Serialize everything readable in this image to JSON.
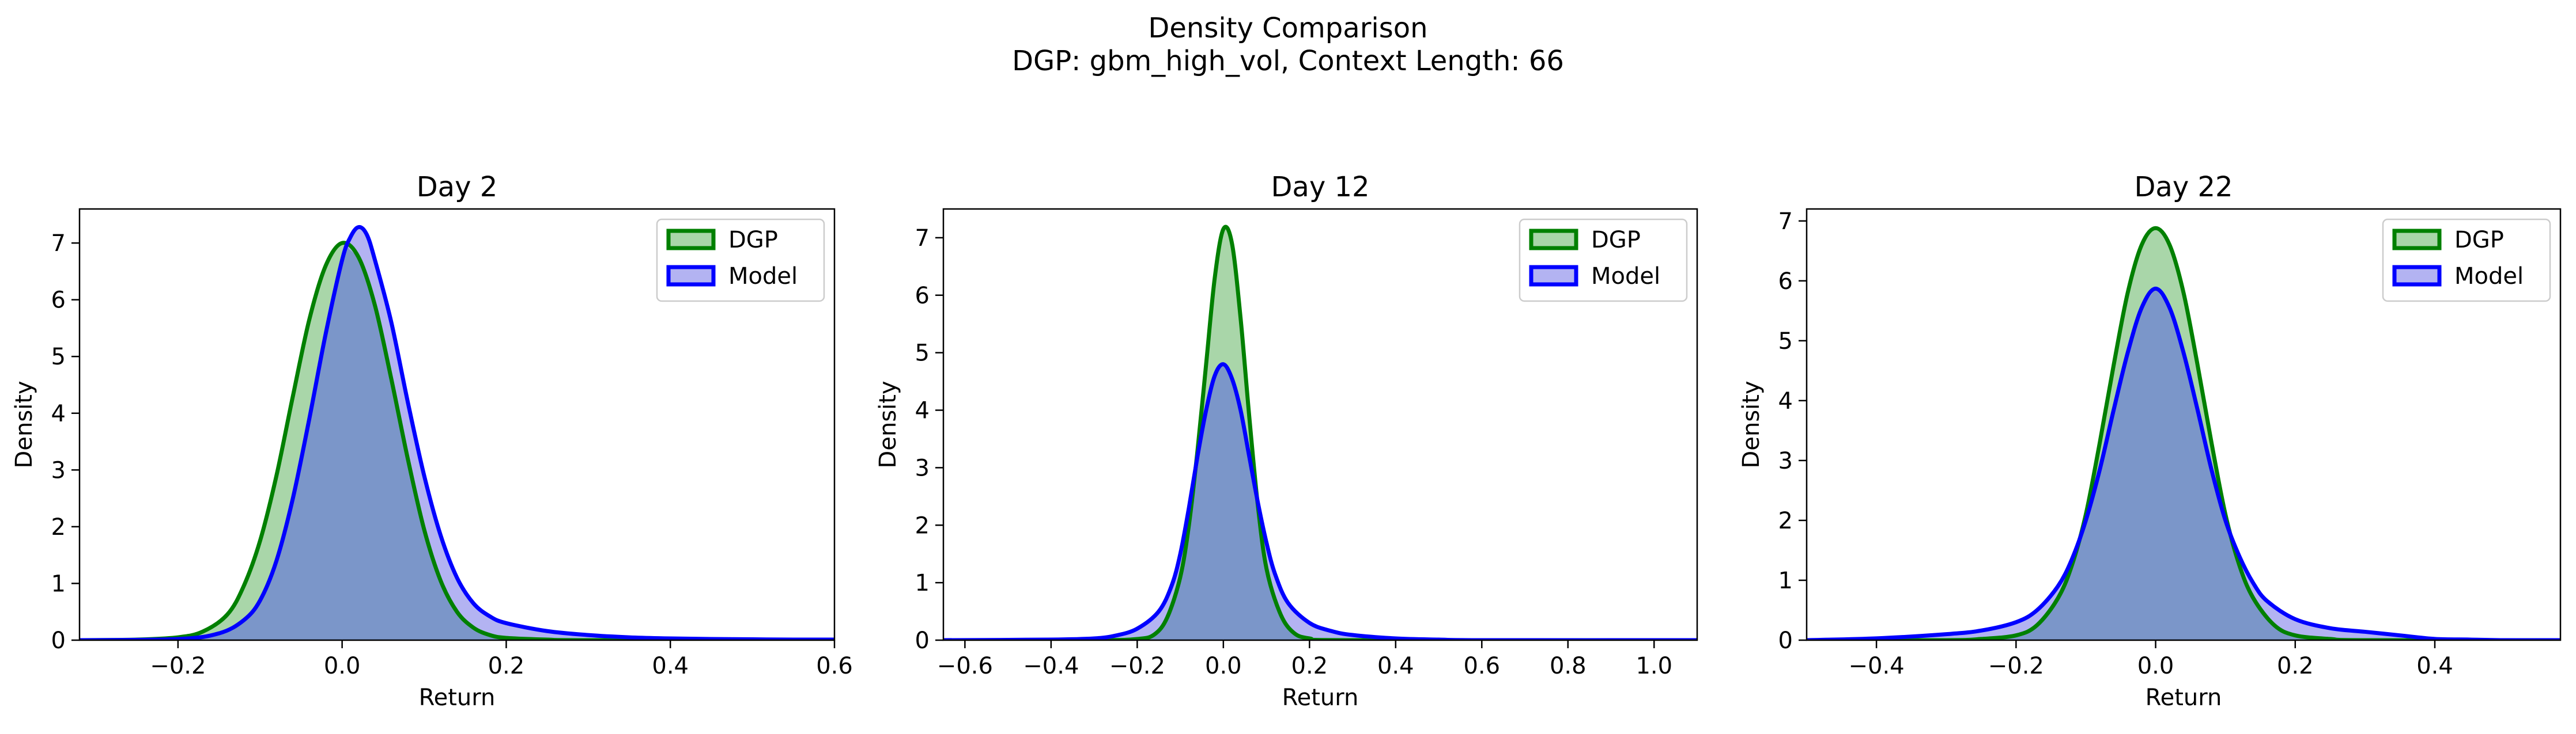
{
  "figure": {
    "title_line1": "Density Comparison",
    "title_line2": "DGP: gbm_high_vol, Context Length: 66"
  },
  "colors": {
    "dgp_line": "#008000",
    "dgp_fill": "#a9d6a9",
    "model_line": "#0000ff",
    "model_fill": "#b3b3f2",
    "overlap_fill": "#7b96c9"
  },
  "chart_data": [
    {
      "type": "area",
      "title": "Day 2",
      "xlabel": "Return",
      "ylabel": "Density",
      "xlim": [
        -0.32,
        0.6
      ],
      "ylim": [
        0,
        7.6
      ],
      "xticks": [
        -0.2,
        0.0,
        0.2,
        0.4,
        0.6
      ],
      "xtick_labels": [
        "−0.2",
        "0.0",
        "0.2",
        "0.4",
        "0.6"
      ],
      "yticks": [
        0,
        1,
        2,
        3,
        4,
        5,
        6,
        7
      ],
      "ytick_labels": [
        "0",
        "1",
        "2",
        "3",
        "4",
        "5",
        "6",
        "7"
      ],
      "legend": "upper right",
      "series": [
        {
          "name": "DGP",
          "x": [
            -0.32,
            -0.25,
            -0.2,
            -0.17,
            -0.14,
            -0.12,
            -0.1,
            -0.08,
            -0.06,
            -0.04,
            -0.02,
            0.0,
            0.02,
            0.04,
            0.06,
            0.08,
            0.1,
            0.12,
            0.14,
            0.16,
            0.18,
            0.2,
            0.25,
            0.3,
            0.6
          ],
          "y": [
            0.0,
            0.01,
            0.05,
            0.15,
            0.45,
            0.95,
            1.75,
            2.9,
            4.3,
            5.65,
            6.6,
            7.0,
            6.75,
            5.9,
            4.6,
            3.2,
            1.95,
            1.05,
            0.5,
            0.22,
            0.09,
            0.04,
            0.01,
            0.0,
            0.0
          ]
        },
        {
          "name": "Model",
          "x": [
            -0.32,
            -0.2,
            -0.15,
            -0.12,
            -0.1,
            -0.08,
            -0.06,
            -0.04,
            -0.02,
            0.0,
            0.01,
            0.02,
            0.03,
            0.04,
            0.06,
            0.08,
            0.1,
            0.12,
            0.14,
            0.16,
            0.18,
            0.2,
            0.25,
            0.3,
            0.35,
            0.4,
            0.45,
            0.5,
            0.55,
            0.6
          ],
          "y": [
            0.0,
            0.02,
            0.12,
            0.35,
            0.7,
            1.4,
            2.5,
            3.9,
            5.4,
            6.7,
            7.1,
            7.28,
            7.15,
            6.7,
            5.6,
            4.2,
            2.9,
            1.85,
            1.1,
            0.65,
            0.42,
            0.3,
            0.16,
            0.09,
            0.05,
            0.03,
            0.02,
            0.015,
            0.01,
            0.01
          ]
        }
      ]
    },
    {
      "type": "area",
      "title": "Day 12",
      "xlabel": "Return",
      "ylabel": "Density",
      "xlim": [
        -0.65,
        1.1
      ],
      "ylim": [
        0,
        7.5
      ],
      "xticks": [
        -0.6,
        -0.4,
        -0.2,
        0.0,
        0.2,
        0.4,
        0.6,
        0.8,
        1.0
      ],
      "xtick_labels": [
        "−0.6",
        "−0.4",
        "−0.2",
        "0.0",
        "0.2",
        "0.4",
        "0.6",
        "0.8",
        "1.0"
      ],
      "yticks": [
        0,
        1,
        2,
        3,
        4,
        5,
        6,
        7
      ],
      "ytick_labels": [
        "0",
        "1",
        "2",
        "3",
        "4",
        "5",
        "6",
        "7"
      ],
      "legend": "upper right",
      "series": [
        {
          "name": "DGP",
          "x": [
            -0.65,
            -0.3,
            -0.2,
            -0.16,
            -0.13,
            -0.1,
            -0.08,
            -0.06,
            -0.04,
            -0.02,
            0.0,
            0.02,
            0.04,
            0.06,
            0.08,
            0.1,
            0.13,
            0.16,
            0.2,
            0.3,
            1.1
          ],
          "y": [
            0.0,
            0.0,
            0.02,
            0.1,
            0.4,
            1.1,
            2.0,
            3.3,
            4.8,
            6.3,
            7.15,
            6.9,
            5.6,
            3.9,
            2.35,
            1.25,
            0.5,
            0.15,
            0.03,
            0.0,
            0.0
          ]
        },
        {
          "name": "Model",
          "x": [
            -0.65,
            -0.4,
            -0.3,
            -0.25,
            -0.2,
            -0.15,
            -0.12,
            -0.1,
            -0.08,
            -0.06,
            -0.04,
            -0.02,
            0.0,
            0.02,
            0.04,
            0.06,
            0.08,
            0.1,
            0.12,
            0.15,
            0.2,
            0.25,
            0.3,
            0.4,
            0.5,
            0.6,
            1.1
          ],
          "y": [
            0.0,
            0.01,
            0.03,
            0.08,
            0.2,
            0.5,
            0.95,
            1.5,
            2.3,
            3.2,
            4.0,
            4.6,
            4.8,
            4.55,
            4.0,
            3.2,
            2.4,
            1.7,
            1.15,
            0.65,
            0.3,
            0.16,
            0.09,
            0.03,
            0.01,
            0.0,
            0.0
          ]
        }
      ]
    },
    {
      "type": "area",
      "title": "Day 22",
      "xlabel": "Return",
      "ylabel": "Density",
      "xlim": [
        -0.5,
        0.58
      ],
      "ylim": [
        0,
        7.2
      ],
      "xticks": [
        -0.4,
        -0.2,
        0.0,
        0.2,
        0.4
      ],
      "xtick_labels": [
        "−0.4",
        "−0.2",
        "0.0",
        "0.2",
        "0.4"
      ],
      "yticks": [
        0,
        1,
        2,
        3,
        4,
        5,
        6,
        7
      ],
      "ytick_labels": [
        "0",
        "1",
        "2",
        "3",
        "4",
        "5",
        "6",
        "7"
      ],
      "legend": "upper right",
      "series": [
        {
          "name": "DGP",
          "x": [
            -0.5,
            -0.3,
            -0.25,
            -0.2,
            -0.17,
            -0.14,
            -0.12,
            -0.1,
            -0.08,
            -0.06,
            -0.04,
            -0.02,
            0.0,
            0.02,
            0.04,
            0.06,
            0.08,
            0.1,
            0.12,
            0.14,
            0.17,
            0.2,
            0.25,
            0.3,
            0.58
          ],
          "y": [
            0.0,
            0.0,
            0.02,
            0.08,
            0.25,
            0.7,
            1.25,
            2.1,
            3.3,
            4.6,
            5.8,
            6.6,
            6.88,
            6.6,
            5.8,
            4.6,
            3.3,
            2.1,
            1.25,
            0.7,
            0.25,
            0.08,
            0.02,
            0.0,
            0.0
          ]
        },
        {
          "name": "Model",
          "x": [
            -0.5,
            -0.4,
            -0.3,
            -0.25,
            -0.2,
            -0.17,
            -0.14,
            -0.12,
            -0.1,
            -0.08,
            -0.06,
            -0.04,
            -0.02,
            0.0,
            0.02,
            0.04,
            0.06,
            0.08,
            0.1,
            0.12,
            0.14,
            0.16,
            0.2,
            0.25,
            0.3,
            0.35,
            0.4,
            0.45,
            0.5,
            0.58
          ],
          "y": [
            0.0,
            0.03,
            0.1,
            0.16,
            0.3,
            0.5,
            0.9,
            1.35,
            2.0,
            2.85,
            3.85,
            4.8,
            5.55,
            5.87,
            5.55,
            4.8,
            3.85,
            2.85,
            2.0,
            1.4,
            0.95,
            0.65,
            0.35,
            0.2,
            0.14,
            0.08,
            0.02,
            0.01,
            0.0,
            0.0
          ]
        }
      ]
    }
  ]
}
